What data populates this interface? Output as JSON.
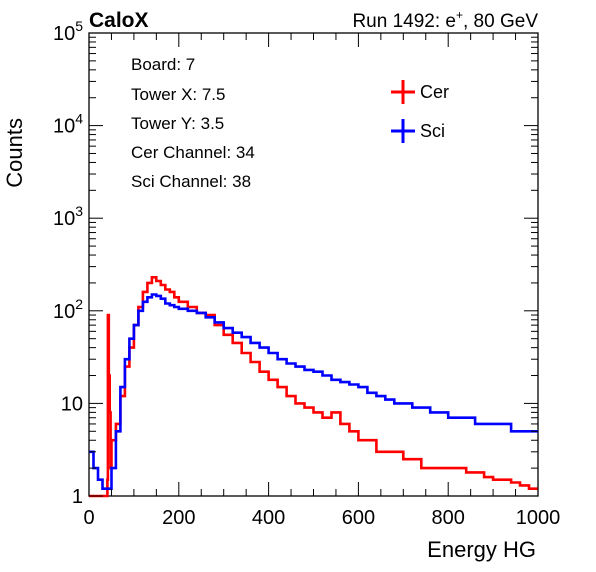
{
  "header": {
    "left": "CaloX",
    "right_prefix": "Run 1492: e",
    "right_sup": "+",
    "right_suffix": ", 80 GeV"
  },
  "info_lines": [
    "Board: 7",
    "Tower X: 7.5",
    "Tower Y: 3.5",
    "Cer Channel: 34",
    "Sci Channel: 38"
  ],
  "chart_data": {
    "type": "line",
    "style": "step-histogram",
    "xlabel": "Energy HG",
    "ylabel": "Counts",
    "xlim": [
      0,
      1000
    ],
    "ylim": [
      1,
      100000
    ],
    "yscale": "log",
    "grid": false,
    "legend_position": "top-right",
    "x_ticks": [
      "0",
      "200",
      "400",
      "600",
      "800",
      "1000"
    ],
    "y_ticks": [
      {
        "base": "1",
        "exp": ""
      },
      {
        "base": "10",
        "exp": ""
      },
      {
        "base": "10",
        "exp": "2"
      },
      {
        "base": "10",
        "exp": "3"
      },
      {
        "base": "10",
        "exp": "4"
      },
      {
        "base": "10",
        "exp": "5"
      }
    ],
    "series": [
      {
        "name": "Cer",
        "color": "#ff0000",
        "x": [
          0,
          20,
          40,
          41,
          42,
          44,
          46,
          48,
          50,
          60,
          70,
          80,
          90,
          100,
          110,
          120,
          130,
          140,
          150,
          160,
          170,
          180,
          190,
          200,
          220,
          240,
          260,
          280,
          300,
          320,
          340,
          360,
          380,
          400,
          420,
          440,
          460,
          480,
          500,
          520,
          540,
          560,
          580,
          600,
          620,
          640,
          660,
          680,
          700,
          720,
          740,
          760,
          780,
          800,
          820,
          840,
          860,
          880,
          900,
          920,
          940,
          960,
          980,
          1000
        ],
        "y": [
          1,
          1,
          1,
          1.5,
          90,
          20,
          8,
          2,
          4,
          6,
          12,
          25,
          40,
          70,
          110,
          160,
          200,
          230,
          210,
          190,
          170,
          160,
          140,
          125,
          110,
          95,
          90,
          70,
          55,
          45,
          35,
          28,
          22,
          18,
          15,
          12,
          10,
          9,
          8,
          7,
          8,
          6,
          5,
          4,
          4,
          3,
          3,
          3,
          2.5,
          2.5,
          2,
          2,
          2,
          2,
          2,
          1.8,
          1.8,
          1.6,
          1.5,
          1.5,
          1.4,
          1.3,
          1.2,
          1.2
        ]
      },
      {
        "name": "Sci",
        "color": "#0000ff",
        "x": [
          0,
          10,
          20,
          30,
          40,
          50,
          60,
          70,
          80,
          90,
          100,
          110,
          120,
          130,
          140,
          150,
          160,
          170,
          180,
          190,
          200,
          220,
          240,
          260,
          280,
          300,
          320,
          340,
          360,
          380,
          400,
          420,
          440,
          460,
          480,
          500,
          520,
          540,
          560,
          580,
          600,
          620,
          640,
          660,
          680,
          700,
          720,
          740,
          760,
          780,
          800,
          820,
          840,
          860,
          880,
          900,
          920,
          940,
          960,
          980,
          1000
        ],
        "y": [
          3,
          2,
          1.5,
          1.2,
          1.2,
          2,
          5,
          15,
          30,
          50,
          70,
          100,
          125,
          140,
          150,
          145,
          135,
          120,
          115,
          110,
          105,
          100,
          95,
          85,
          75,
          65,
          58,
          52,
          45,
          40,
          35,
          30,
          27,
          25,
          23,
          22,
          20,
          18,
          17,
          16,
          15,
          13,
          12,
          11,
          10,
          10,
          9,
          9,
          8,
          8,
          7,
          7,
          7,
          6,
          6,
          6,
          6,
          5,
          5,
          5,
          5
        ]
      }
    ]
  }
}
